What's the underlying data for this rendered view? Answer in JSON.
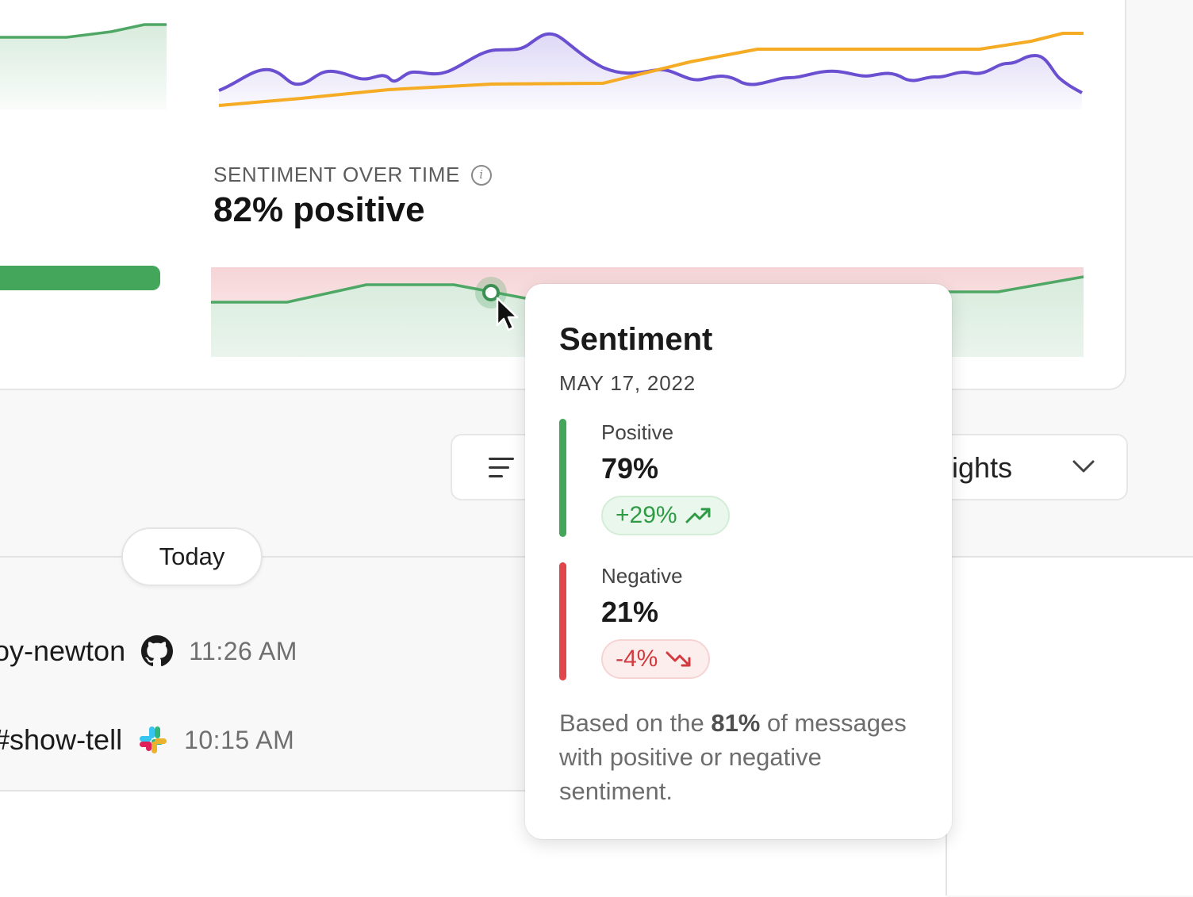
{
  "sentiment_widget": {
    "label": "SENTIMENT OVER TIME",
    "value": "82% positive"
  },
  "toolbar": {
    "highlights_label": "ghlights"
  },
  "timeline": {
    "today_label": "Today",
    "items": [
      {
        "name": "oy-newton",
        "source_icon": "github-icon",
        "time": "11:26 AM"
      },
      {
        "name": "#show-tell",
        "source_icon": "slack-icon",
        "time": "10:15 AM"
      }
    ]
  },
  "tooltip": {
    "title": "Sentiment",
    "date": "MAY 17, 2022",
    "positive": {
      "label": "Positive",
      "value": "79%",
      "change": "+29%",
      "trend_icon": "trend-up-icon"
    },
    "negative": {
      "label": "Negative",
      "value": "21%",
      "change": "-4%",
      "trend_icon": "trend-down-icon"
    },
    "footnote_pre": "Based on the ",
    "footnote_bold": "81%",
    "footnote_post": " of messages with positive or negative sentiment."
  },
  "colors": {
    "positive": "#43a65a",
    "negative": "#e0464b",
    "purple_series": "#6a4fd0",
    "orange_series": "#f5ab23"
  }
}
